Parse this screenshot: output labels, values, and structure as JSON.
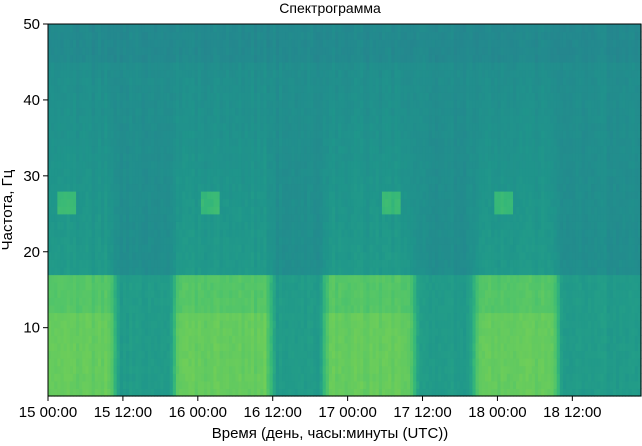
{
  "chart_data": {
    "type": "heatmap",
    "title": "Спектрограмма",
    "xlabel": "Время (день, часы:минуты (UTC))",
    "ylabel": "Частота, Гц",
    "x_ticks": [
      "15 00:00",
      "15 12:00",
      "16 00:00",
      "16 12:00",
      "17 00:00",
      "17 12:00",
      "18 00:00",
      "18 12:00"
    ],
    "y_ticks": [
      "10",
      "20",
      "30",
      "40",
      "50"
    ],
    "xlim": [
      "15 00:00",
      "18 23:00"
    ],
    "ylim": [
      1,
      50
    ],
    "grid": false,
    "colormap": [
      "#2a7d8e",
      "#23898e",
      "#1f958b",
      "#25a286",
      "#35b779",
      "#4ec36b",
      "#6ccd5a",
      "#8fd744"
    ],
    "periodic_activity": {
      "low_frequency_band_hz": [
        1,
        17
      ],
      "high_activity_periods": [
        [
          "15 00:00",
          "15 10:00"
        ],
        [
          "15 21:00",
          "16 11:00"
        ],
        [
          "16 21:00",
          "17 10:00"
        ],
        [
          "17 21:00",
          "18 09:00"
        ]
      ],
      "narrowband_events": [
        {
          "time": "15 03:00",
          "frequency_hz": 26
        },
        {
          "time": "16 02:00",
          "frequency_hz": 26
        },
        {
          "time": "17 07:00",
          "frequency_hz": 26
        },
        {
          "time": "18 01:00",
          "frequency_hz": 26
        }
      ]
    }
  }
}
